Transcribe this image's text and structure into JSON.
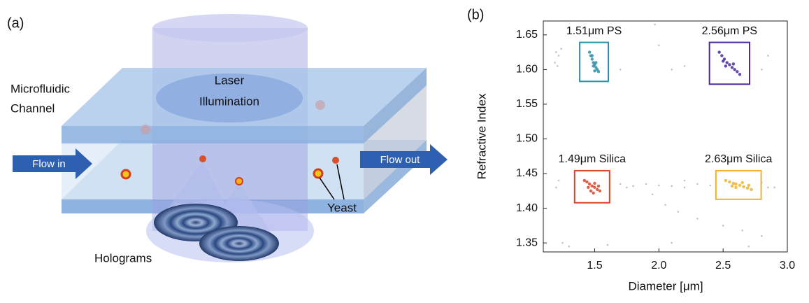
{
  "panel_a": {
    "label": "(a)",
    "channel_label": [
      "Microfluidic",
      "Channel"
    ],
    "laser_label": [
      "Laser",
      "Illumination"
    ],
    "flow_in": "Flow in",
    "flow_out": "Flow out",
    "yeast": "Yeast",
    "holograms": "Holograms"
  },
  "chart_data": {
    "type": "scatter",
    "panel_label": "(b)",
    "x_label": "Diameter [μm]",
    "y_label": "Refractive Index",
    "xlim": [
      1.1,
      3.0
    ],
    "xticks": [
      1.5,
      {
        "value": 2,
        "label": "2.0"
      },
      2.5,
      {
        "value": 3,
        "label": "3.0"
      }
    ],
    "ylim": [
      1.337,
      1.67
    ],
    "yticks": [
      1.35,
      {
        "value": 1.4,
        "label": "1.40"
      },
      1.45,
      {
        "value": 1.5,
        "label": "1.50"
      },
      1.55,
      {
        "value": 1.6,
        "label": "1.60"
      },
      1.65
    ],
    "series": [
      {
        "name": "1.51μm PS",
        "color": "#2a8fa8",
        "x": [
          1.46,
          1.47,
          1.48,
          1.49,
          1.5,
          1.51,
          1.52,
          1.53,
          1.49,
          1.51,
          1.5,
          1.48
        ],
        "values": [
          1.625,
          1.62,
          1.615,
          1.61,
          1.607,
          1.603,
          1.6,
          1.597,
          1.605,
          1.61,
          1.598,
          1.62
        ]
      },
      {
        "name": "2.56μm PS",
        "color": "#4a2a9a",
        "x": [
          2.47,
          2.49,
          2.51,
          2.53,
          2.55,
          2.57,
          2.59,
          2.61,
          2.63,
          2.52,
          2.58,
          2.5
        ],
        "values": [
          1.625,
          1.62,
          1.615,
          1.61,
          1.607,
          1.603,
          1.6,
          1.597,
          1.593,
          1.605,
          1.608,
          1.612
        ]
      },
      {
        "name": "1.49μm Silica",
        "color": "#d9452b",
        "x": [
          1.42,
          1.44,
          1.46,
          1.48,
          1.5,
          1.52,
          1.54,
          1.47,
          1.5,
          1.45,
          1.53,
          1.49
        ],
        "values": [
          1.44,
          1.438,
          1.435,
          1.432,
          1.43,
          1.427,
          1.425,
          1.425,
          1.436,
          1.43,
          1.432,
          1.422
        ]
      },
      {
        "name": "2.63μm Silica",
        "color": "#f0b323",
        "x": [
          2.52,
          2.55,
          2.58,
          2.6,
          2.63,
          2.66,
          2.69,
          2.72,
          2.6,
          2.65,
          2.7,
          2.57
        ],
        "values": [
          1.44,
          1.438,
          1.436,
          1.435,
          1.433,
          1.431,
          1.429,
          1.427,
          1.43,
          1.437,
          1.433,
          1.432
        ]
      },
      {
        "color": "#aaaaaa",
        "x": [
          1.2,
          1.22,
          1.21,
          1.24,
          1.19,
          1.7,
          1.97,
          2.0,
          2.1,
          2.2,
          2.2,
          2.8,
          2.85,
          1.7,
          1.75,
          1.8,
          1.9,
          2.0,
          2.1,
          2.2,
          2.3,
          2.4,
          2.8,
          2.85,
          2.9,
          1.95,
          2.05,
          2.15,
          2.3,
          2.5,
          2.65,
          2.8,
          1.25,
          1.3,
          1.6,
          2.1,
          2.7,
          1.22,
          1.2
        ],
        "values": [
          1.625,
          1.62,
          1.605,
          1.63,
          1.61,
          1.6,
          1.665,
          1.635,
          1.6,
          1.605,
          1.44,
          1.6,
          1.62,
          1.435,
          1.43,
          1.432,
          1.435,
          1.433,
          1.432,
          1.43,
          1.435,
          1.433,
          1.437,
          1.43,
          1.43,
          1.42,
          1.405,
          1.395,
          1.385,
          1.375,
          1.368,
          1.36,
          1.35,
          1.345,
          1.347,
          1.35,
          1.345,
          1.44,
          1.43
        ]
      }
    ]
  }
}
